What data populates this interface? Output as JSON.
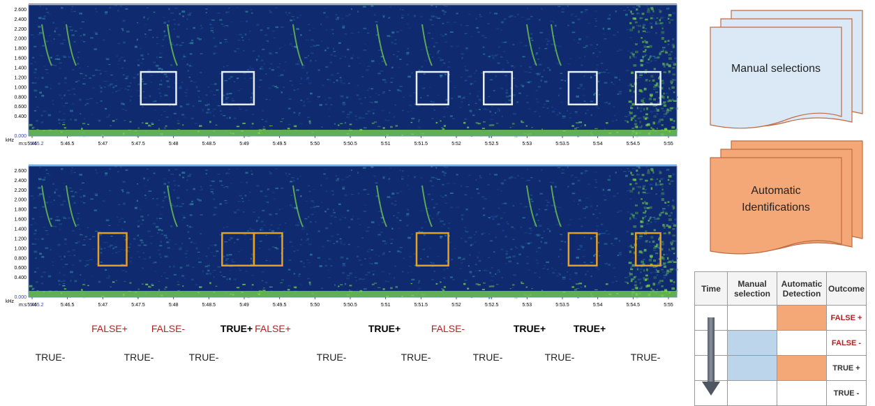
{
  "spectrogram": {
    "y_unit": "kHz",
    "y_ticks": [
      "0.000",
      "0.400",
      "0.600",
      "0.800",
      "1.000",
      "1.200",
      "1.400",
      "1.600",
      "1.800",
      "2.000",
      "2.200",
      "2.400",
      "2.600"
    ],
    "x_prefix": "m:s",
    "x_start": "5:45.2",
    "x_ticks": [
      "5:46",
      "5:46.5",
      "5:47",
      "5:47.5",
      "5:48",
      "5:48.5",
      "5:49",
      "5:49.5",
      "5:50",
      "5:50.5",
      "5:51",
      "5:51.5",
      "5:52",
      "5:52.5",
      "5:53",
      "5:53.5",
      "5:54",
      "5:54.5",
      "5:55"
    ],
    "colors": {
      "background": "#0f2a6e",
      "signal": "#7cdc4a",
      "noise": "#2f7fa0"
    }
  },
  "panels": {
    "manual": {
      "box_color": "#e6eef8"
    },
    "automatic": {
      "box_color": "#e8a020"
    }
  },
  "outcomes_top": [
    "FALSE+",
    "FALSE-",
    "TRUE+",
    "FALSE+",
    "TRUE+",
    "FALSE-",
    "TRUE+",
    "TRUE+"
  ],
  "outcomes_bottom": [
    "TRUE-",
    "TRUE-",
    "TRUE-",
    "TRUE-",
    "TRUE-",
    "TRUE-",
    "TRUE-",
    "TRUE-"
  ],
  "documents": {
    "manual": {
      "label_line1": "Manual selections",
      "label_line2": "",
      "fill": "#dbe8f5"
    },
    "automatic": {
      "label_line1": "Automatic",
      "label_line2": "Identifications",
      "fill": "#f4a878"
    }
  },
  "legend_table": {
    "headers": {
      "time": "Time",
      "manual_l1": "Manual",
      "manual_l2": "selection",
      "auto_l1": "Automatic",
      "auto_l2": "Detection",
      "outcome": "Outcome"
    },
    "rows": [
      {
        "manual": false,
        "auto": true,
        "outcome": "FALSE +"
      },
      {
        "manual": true,
        "auto": false,
        "outcome": "FALSE -"
      },
      {
        "manual": true,
        "auto": true,
        "outcome": "TRUE +"
      },
      {
        "manual": false,
        "auto": false,
        "outcome": "TRUE -"
      }
    ]
  }
}
